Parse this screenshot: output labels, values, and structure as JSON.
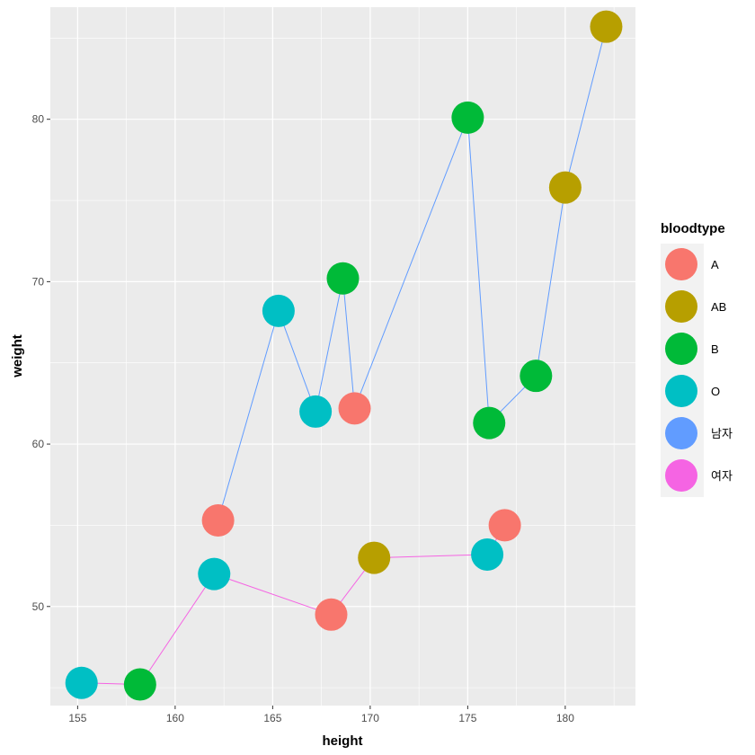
{
  "chart_data": {
    "type": "scatter",
    "title": "",
    "xlabel": "height",
    "ylabel": "weight",
    "xlim": [
      153.6,
      183.6
    ],
    "ylim": [
      43.9,
      86.9
    ],
    "x_ticks": [
      155,
      160,
      165,
      170,
      175,
      180
    ],
    "y_ticks": [
      50,
      60,
      70,
      80
    ],
    "grid": true,
    "legend_position": "right",
    "legend": {
      "title": "bloodtype",
      "entries": [
        {
          "label": "A",
          "color": "#F8766D"
        },
        {
          "label": "AB",
          "color": "#B79F00"
        },
        {
          "label": "B",
          "color": "#00BA38"
        },
        {
          "label": "O",
          "color": "#00BFC4"
        },
        {
          "label": "남자",
          "color": "#619CFF"
        },
        {
          "label": "여자",
          "color": "#F564E3"
        }
      ]
    },
    "lines": [
      {
        "name": "남자",
        "color": "#619CFF",
        "points": [
          {
            "x": 162.2,
            "y": 55.3
          },
          {
            "x": 165.3,
            "y": 68.2
          },
          {
            "x": 167.2,
            "y": 62.0
          },
          {
            "x": 168.6,
            "y": 70.2
          },
          {
            "x": 169.2,
            "y": 62.2
          },
          {
            "x": 175.0,
            "y": 80.1
          },
          {
            "x": 176.1,
            "y": 61.3
          },
          {
            "x": 178.5,
            "y": 64.2
          },
          {
            "x": 180.0,
            "y": 75.8
          },
          {
            "x": 182.1,
            "y": 85.7
          }
        ]
      },
      {
        "name": "여자",
        "color": "#F564E3",
        "points": [
          {
            "x": 155.2,
            "y": 45.3
          },
          {
            "x": 158.2,
            "y": 45.2
          },
          {
            "x": 162.0,
            "y": 52.0
          },
          {
            "x": 168.0,
            "y": 49.5
          },
          {
            "x": 170.2,
            "y": 53.0
          },
          {
            "x": 176.0,
            "y": 53.2
          },
          {
            "x": 176.9,
            "y": 55.0
          }
        ]
      }
    ],
    "points": [
      {
        "x": 155.2,
        "y": 45.3,
        "bloodtype": "O"
      },
      {
        "x": 158.2,
        "y": 45.2,
        "bloodtype": "B"
      },
      {
        "x": 162.0,
        "y": 52.0,
        "bloodtype": "O"
      },
      {
        "x": 162.2,
        "y": 55.3,
        "bloodtype": "A"
      },
      {
        "x": 165.3,
        "y": 68.2,
        "bloodtype": "O"
      },
      {
        "x": 167.2,
        "y": 62.0,
        "bloodtype": "O"
      },
      {
        "x": 168.0,
        "y": 49.5,
        "bloodtype": "A"
      },
      {
        "x": 168.6,
        "y": 70.2,
        "bloodtype": "B"
      },
      {
        "x": 169.2,
        "y": 62.2,
        "bloodtype": "A"
      },
      {
        "x": 170.2,
        "y": 53.0,
        "bloodtype": "AB"
      },
      {
        "x": 175.0,
        "y": 80.1,
        "bloodtype": "B"
      },
      {
        "x": 176.1,
        "y": 61.3,
        "bloodtype": "B"
      },
      {
        "x": 176.0,
        "y": 53.2,
        "bloodtype": "O"
      },
      {
        "x": 176.9,
        "y": 55.0,
        "bloodtype": "A"
      },
      {
        "x": 178.5,
        "y": 64.2,
        "bloodtype": "B"
      },
      {
        "x": 180.0,
        "y": 75.8,
        "bloodtype": "AB"
      },
      {
        "x": 182.1,
        "y": 85.7,
        "bloodtype": "AB"
      }
    ],
    "panel_color": "#EBEBEB",
    "grid_color": "#FFFFFF"
  }
}
